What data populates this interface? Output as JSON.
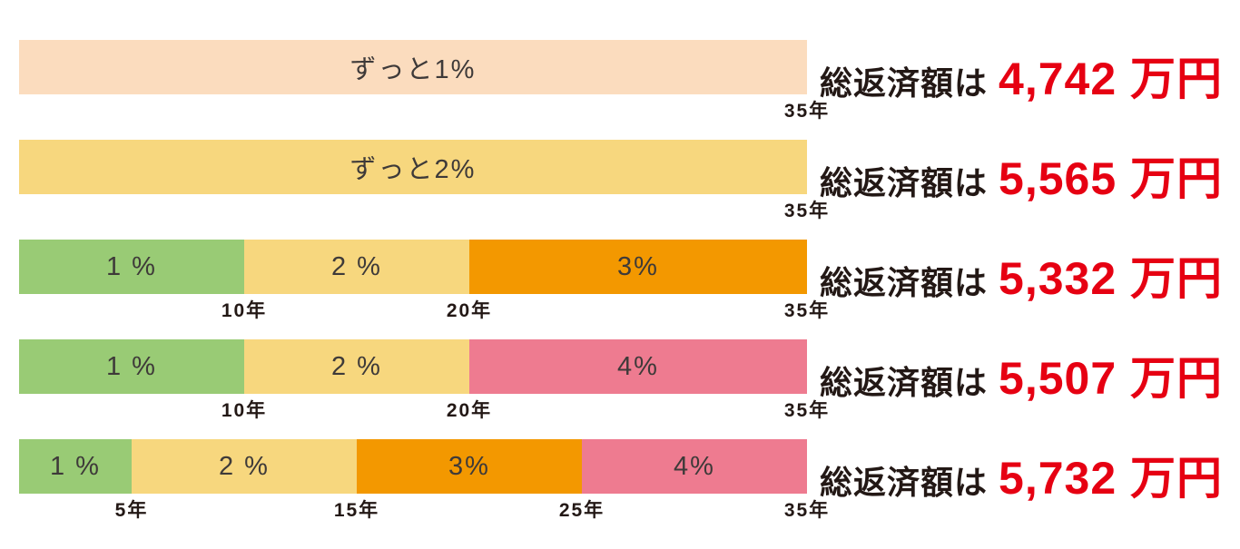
{
  "page": {
    "background": "#ffffff"
  },
  "colors": {
    "flat_1pct_bar": "#fbdcbe",
    "flat_2pct_bar": "#f7d77e",
    "rate_1pct": "#99cb75",
    "rate_2pct": "#f7d77e",
    "rate_3pct": "#f39800",
    "rate_4pct": "#ee7b90",
    "text_dark": "#231815",
    "segment_label_text": "#3e3a39",
    "amount_red": "#e60012"
  },
  "total_years": 35,
  "rows": [
    {
      "segments": [
        {
          "label": "ずっと1%",
          "years": 35,
          "color": "#fbdcbe"
        }
      ],
      "ticks": [
        {
          "label": "35年",
          "at": 35
        }
      ],
      "total_label": "総返済額は",
      "total_amount": "4,742 万円"
    },
    {
      "segments": [
        {
          "label": "ずっと2%",
          "years": 35,
          "color": "#f7d77e"
        }
      ],
      "ticks": [
        {
          "label": "35年",
          "at": 35
        }
      ],
      "total_label": "総返済額は",
      "total_amount": "5,565 万円"
    },
    {
      "segments": [
        {
          "label": "1 %",
          "years": 10,
          "color": "#99cb75"
        },
        {
          "label": "2 %",
          "years": 10,
          "color": "#f7d77e"
        },
        {
          "label": "3%",
          "years": 15,
          "color": "#f39800"
        }
      ],
      "ticks": [
        {
          "label": "10年",
          "at": 10
        },
        {
          "label": "20年",
          "at": 20
        },
        {
          "label": "35年",
          "at": 35
        }
      ],
      "total_label": "総返済額は",
      "total_amount": "5,332 万円"
    },
    {
      "segments": [
        {
          "label": "1 %",
          "years": 10,
          "color": "#99cb75"
        },
        {
          "label": "2 %",
          "years": 10,
          "color": "#f7d77e"
        },
        {
          "label": "4%",
          "years": 15,
          "color": "#ee7b90"
        }
      ],
      "ticks": [
        {
          "label": "10年",
          "at": 10
        },
        {
          "label": "20年",
          "at": 20
        },
        {
          "label": "35年",
          "at": 35
        }
      ],
      "total_label": "総返済額は",
      "total_amount": "5,507 万円"
    },
    {
      "segments": [
        {
          "label": "1 %",
          "years": 5,
          "color": "#99cb75"
        },
        {
          "label": "2 %",
          "years": 10,
          "color": "#f7d77e"
        },
        {
          "label": "3%",
          "years": 10,
          "color": "#f39800"
        },
        {
          "label": "4%",
          "years": 10,
          "color": "#ee7b90"
        }
      ],
      "ticks": [
        {
          "label": "5年",
          "at": 5
        },
        {
          "label": "15年",
          "at": 15
        },
        {
          "label": "25年",
          "at": 25
        },
        {
          "label": "35年",
          "at": 35
        }
      ],
      "total_label": "総返済額は",
      "total_amount": "5,732 万円"
    }
  ],
  "chart_data": {
    "type": "bar",
    "variant": "horizontal-stacked-timeline",
    "stacked": true,
    "x_unit": "年",
    "xlim": [
      0,
      35
    ],
    "grid": false,
    "legend": false,
    "scenarios": [
      {
        "segments": [
          {
            "rate_label": "ずっと1%",
            "start_year": 0,
            "end_year": 35
          }
        ],
        "year_ticks": [
          35
        ],
        "total_text": "総返済額は 4,742 万円",
        "total_man_yen": 4742
      },
      {
        "segments": [
          {
            "rate_label": "ずっと2%",
            "start_year": 0,
            "end_year": 35
          }
        ],
        "year_ticks": [
          35
        ],
        "total_text": "総返済額は 5,565 万円",
        "total_man_yen": 5565
      },
      {
        "segments": [
          {
            "rate_label": "1 %",
            "start_year": 0,
            "end_year": 10
          },
          {
            "rate_label": "2 %",
            "start_year": 10,
            "end_year": 20
          },
          {
            "rate_label": "3%",
            "start_year": 20,
            "end_year": 35
          }
        ],
        "year_ticks": [
          10,
          20,
          35
        ],
        "total_text": "総返済額は 5,332 万円",
        "total_man_yen": 5332
      },
      {
        "segments": [
          {
            "rate_label": "1 %",
            "start_year": 0,
            "end_year": 10
          },
          {
            "rate_label": "2 %",
            "start_year": 10,
            "end_year": 20
          },
          {
            "rate_label": "4%",
            "start_year": 20,
            "end_year": 35
          }
        ],
        "year_ticks": [
          10,
          20,
          35
        ],
        "total_text": "総返済額は 5,507 万円",
        "total_man_yen": 5507
      },
      {
        "segments": [
          {
            "rate_label": "1 %",
            "start_year": 0,
            "end_year": 5
          },
          {
            "rate_label": "2 %",
            "start_year": 5,
            "end_year": 15
          },
          {
            "rate_label": "3%",
            "start_year": 15,
            "end_year": 25
          },
          {
            "rate_label": "4%",
            "start_year": 25,
            "end_year": 35
          }
        ],
        "year_ticks": [
          5,
          15,
          25,
          35
        ],
        "total_text": "総返済額は 5,732 万円",
        "total_man_yen": 5732
      }
    ]
  }
}
